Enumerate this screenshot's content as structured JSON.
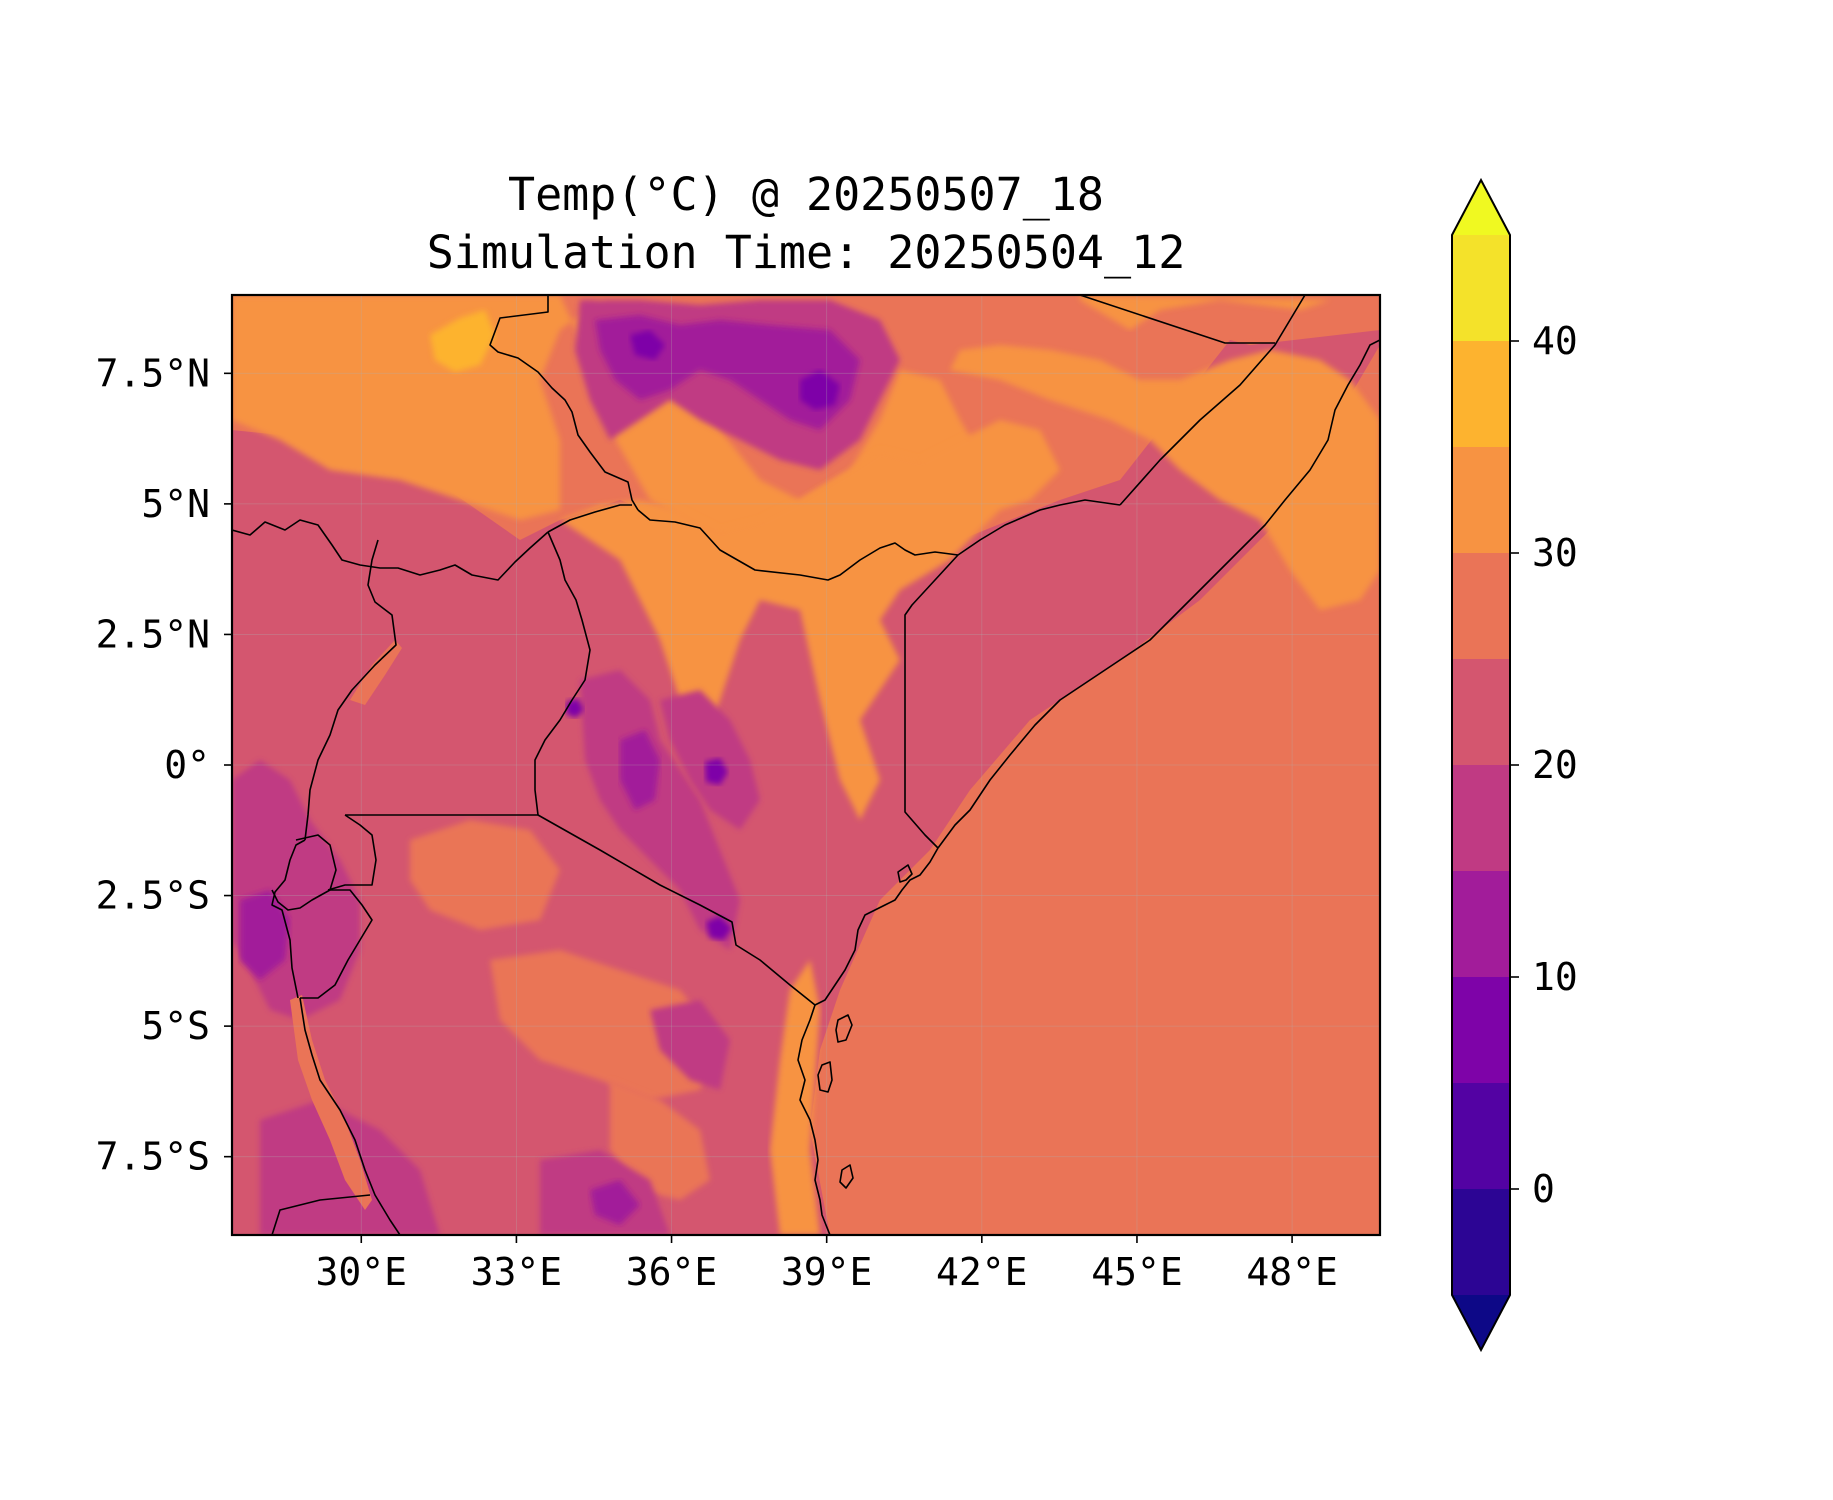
{
  "title": {
    "line1": "Temp(°C) @ 20250507_18",
    "line2": "Simulation Time: 20250504_12"
  },
  "map": {
    "lon_range": [
      27.5,
      49.7
    ],
    "lat_range": [
      -9.0,
      9.0
    ],
    "lon_ticks": [
      {
        "value": 30,
        "label": "30°E"
      },
      {
        "value": 33,
        "label": "33°E"
      },
      {
        "value": 36,
        "label": "36°E"
      },
      {
        "value": 39,
        "label": "39°E"
      },
      {
        "value": 42,
        "label": "42°E"
      },
      {
        "value": 45,
        "label": "45°E"
      },
      {
        "value": 48,
        "label": "48°E"
      }
    ],
    "lat_ticks": [
      {
        "value": 7.5,
        "label": "7.5°N"
      },
      {
        "value": 5,
        "label": "5°N"
      },
      {
        "value": 2.5,
        "label": "2.5°N"
      },
      {
        "value": 0,
        "label": "0°"
      },
      {
        "value": -2.5,
        "label": "2.5°S"
      },
      {
        "value": -5,
        "label": "5°S"
      },
      {
        "value": -7.5,
        "label": "7.5°S"
      }
    ],
    "ocean_color": "#ea7457",
    "base_land_color": "#d4566f"
  },
  "colorbar": {
    "min": -5,
    "max": 45,
    "step": 5,
    "extend": "both",
    "tick_labels": [
      {
        "value": 0,
        "label": "0"
      },
      {
        "value": 10,
        "label": "10"
      },
      {
        "value": 20,
        "label": "20"
      },
      {
        "value": 30,
        "label": "30"
      },
      {
        "value": 40,
        "label": "40"
      }
    ],
    "under_color": "#0d0887",
    "over_color": "#f0f921",
    "colors": [
      "#2c0594",
      "#5302a3",
      "#7e03a8",
      "#a21c9a",
      "#c03a83",
      "#d4566f",
      "#ea7457",
      "#f79342",
      "#fdb32f",
      "#f4e22a"
    ]
  }
}
